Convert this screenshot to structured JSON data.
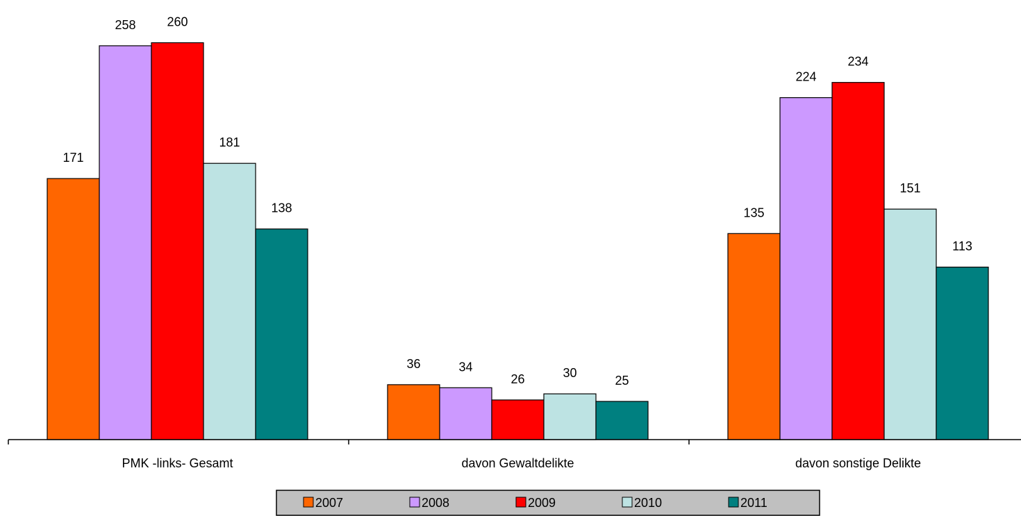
{
  "chart_data": {
    "type": "bar",
    "categories": [
      "PMK -links- Gesamt",
      "davon Gewaltdelikte",
      "davon sonstige Delikte"
    ],
    "series": [
      {
        "name": "2007",
        "values": [
          171,
          36,
          135
        ],
        "color": "#FF6600"
      },
      {
        "name": "2008",
        "values": [
          258,
          34,
          224
        ],
        "color": "#CC99FF"
      },
      {
        "name": "2009",
        "values": [
          260,
          26,
          234
        ],
        "color": "#FF0000"
      },
      {
        "name": "2010",
        "values": [
          181,
          30,
          151
        ],
        "color": "#BDE3E3"
      },
      {
        "name": "2011",
        "values": [
          138,
          25,
          113
        ],
        "color": "#008080"
      }
    ],
    "title": "",
    "xlabel": "",
    "ylabel": "",
    "ylim": [
      0,
      320
    ],
    "grid": false,
    "data_labels": true,
    "legend_position": "bottom",
    "legend_background": "#C0C0C0"
  }
}
